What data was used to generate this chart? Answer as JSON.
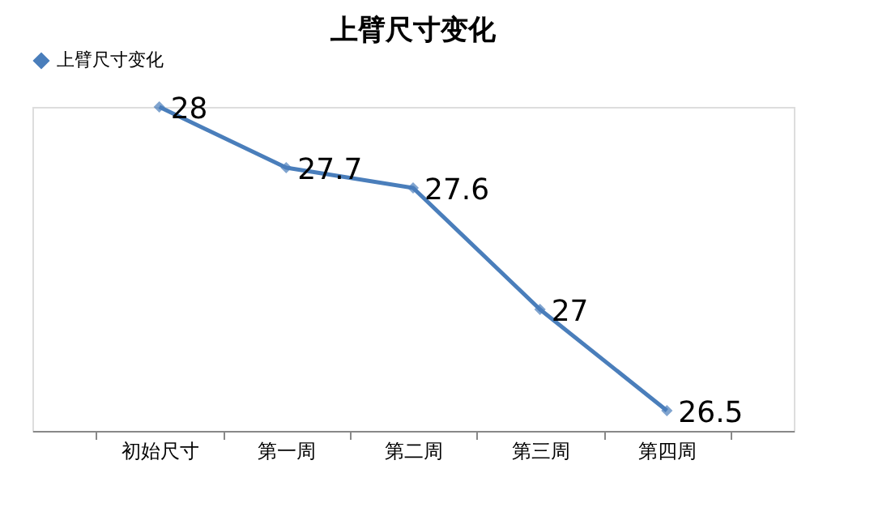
{
  "chart_data": {
    "type": "line",
    "title": "上臂尺寸变化",
    "categories": [
      "初始尺寸",
      "第一周",
      "第二周",
      "第三周",
      "第四周"
    ],
    "series": [
      {
        "name": "上臂尺寸变化",
        "color": "#4a7ebb",
        "values": [
          28,
          27.7,
          27.6,
          27,
          26.5
        ]
      }
    ],
    "data_labels": true,
    "legend": "top",
    "grid": false,
    "marker": "diamond",
    "line_style": "solid"
  }
}
